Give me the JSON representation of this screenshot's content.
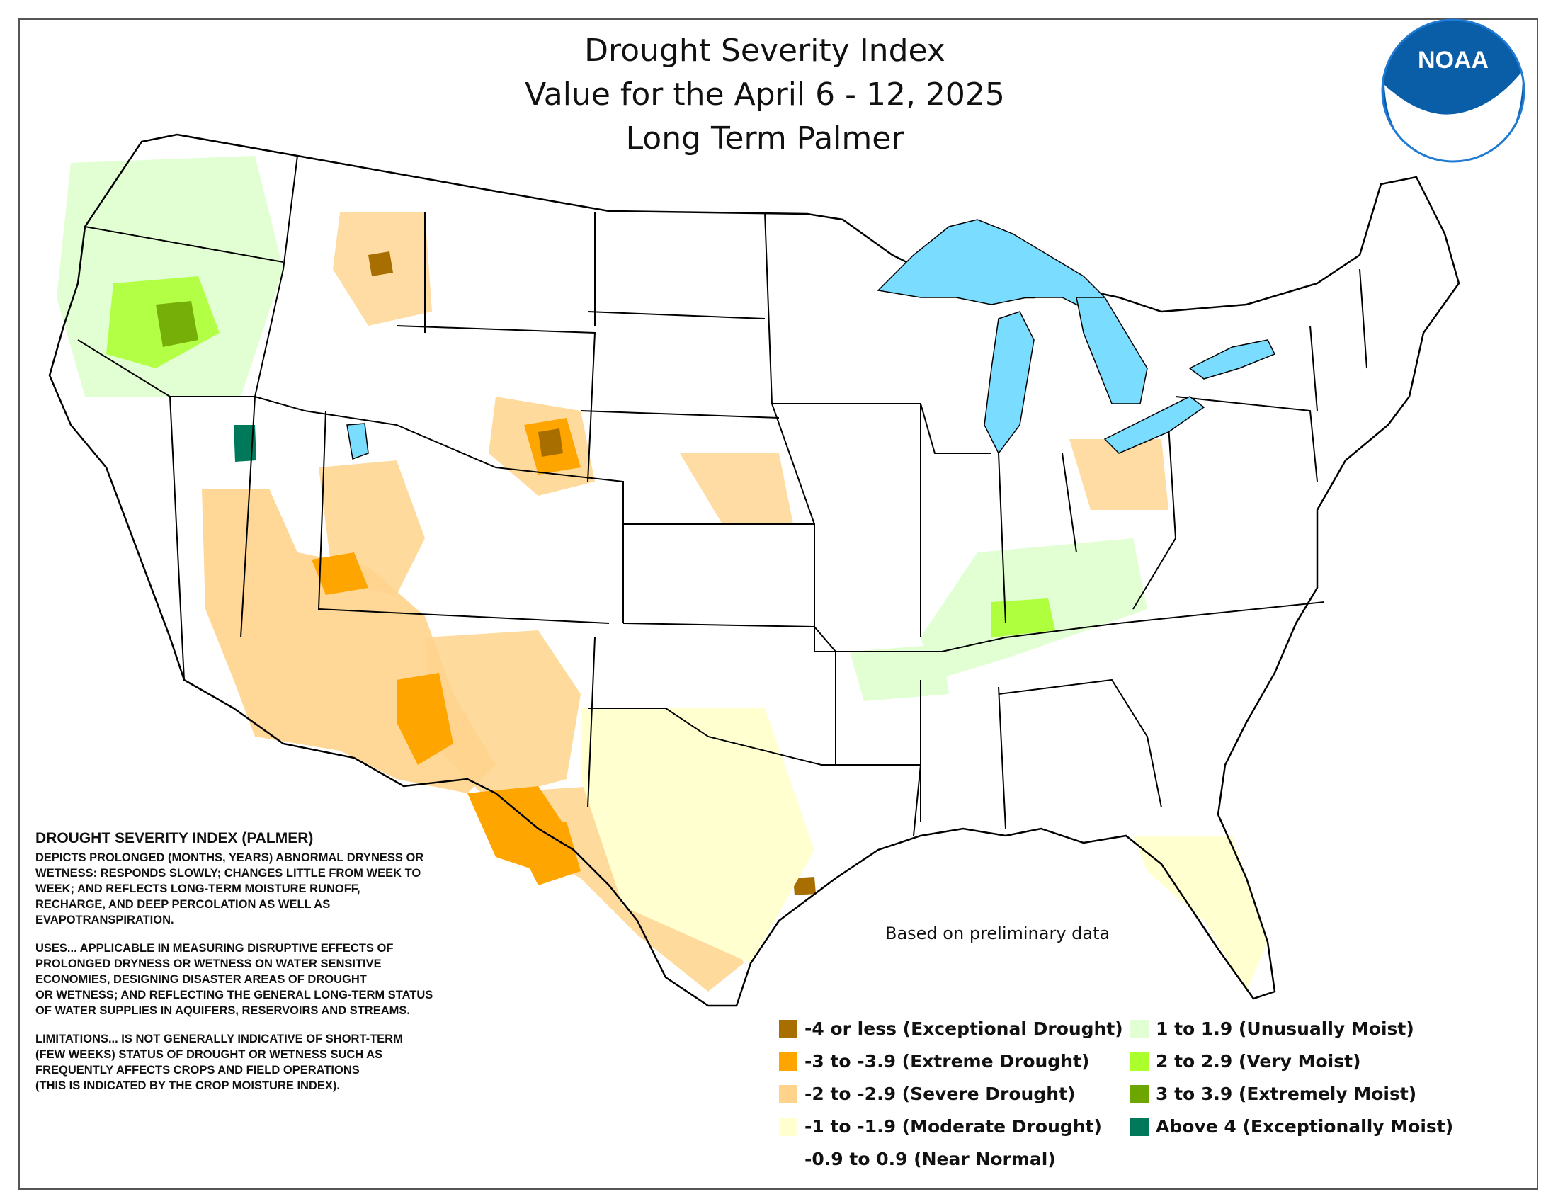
{
  "title": {
    "line1": "Drought Severity Index",
    "line2": "Value for the April 6 - 12, 2025",
    "line3": "Long Term Palmer"
  },
  "logo": {
    "text": "NOAA",
    "ring_color": "#0a5ea8",
    "body_color": "#1f7ad4"
  },
  "map": {
    "lake_color": "#7adcff",
    "background_fill": "#ffffff",
    "border_color": "#000000"
  },
  "note": "Based on preliminary data",
  "info": {
    "heading": "DROUGHT SEVERITY INDEX (PALMER)",
    "para1": "DEPICTS PROLONGED (MONTHS, YEARS) ABNORMAL DRYNESS OR\nWETNESS: RESPONDS SLOWLY; CHANGES LITTLE FROM WEEK TO\nWEEK; AND REFLECTS LONG-TERM MOISTURE RUNOFF,\nRECHARGE, AND DEEP PERCOLATION AS WELL AS\nEVAPOTRANSPIRATION.",
    "para2": "USES... APPLICABLE IN MEASURING DISRUPTIVE EFFECTS OF\nPROLONGED DRYNESS OR WETNESS ON WATER SENSITIVE\nECONOMIES, DESIGNING DISASTER AREAS OF DROUGHT\nOR WETNESS; AND REFLECTING THE GENERAL LONG-TERM STATUS\nOF WATER SUPPLIES IN AQUIFERS, RESERVOIRS AND STREAMS.",
    "para3": "LIMITATIONS... IS NOT GENERALLY INDICATIVE OF SHORT-TERM\n(FEW WEEKS) STATUS OF DROUGHT OR WETNESS SUCH AS\nFREQUENTLY AFFECTS CROPS AND FIELD OPERATIONS\n(THIS IS INDICATED BY THE CROP MOISTURE INDEX)."
  },
  "legend": [
    {
      "label": "-4 or less (Exceptional Drought)",
      "color": "#a86e00"
    },
    {
      "label": "-3 to -3.9 (Extreme Drought)",
      "color": "#ffa500"
    },
    {
      "label": "-2 to -2.9 (Severe Drought)",
      "color": "#ffd38c"
    },
    {
      "label": "-1 to -1.9 (Moderate Drought)",
      "color": "#ffffd0"
    },
    {
      "label": "-0.9 to 0.9 (Near Normal)",
      "color": "#ffffff"
    },
    {
      "label": "1 to 1.9 (Unusually Moist)",
      "color": "#e1ffd2"
    },
    {
      "label": "2 to 2.9 (Very Moist)",
      "color": "#aaff2d"
    },
    {
      "label": "3 to 3.9 (Extremely Moist)",
      "color": "#6ea600"
    },
    {
      "label": "Above 4 (Exceptionally Moist)",
      "color": "#00785a"
    }
  ]
}
